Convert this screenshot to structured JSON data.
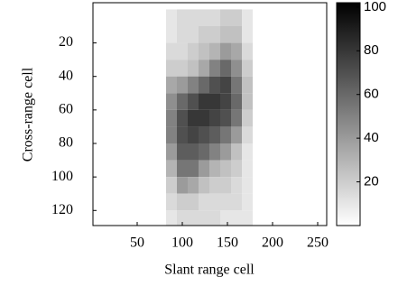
{
  "chart_data": {
    "type": "heatmap",
    "xlabel": "Slant range cell",
    "ylabel": "Cross-range cell",
    "x": [
      88,
      100,
      112,
      124,
      136,
      148,
      160,
      172
    ],
    "y": [
      5,
      15,
      25,
      35,
      45,
      55,
      65,
      75,
      85,
      95,
      105,
      115,
      125
    ],
    "values": [
      [
        10,
        15,
        15,
        15,
        15,
        20,
        20,
        10
      ],
      [
        10,
        15,
        15,
        20,
        20,
        25,
        25,
        10
      ],
      [
        15,
        15,
        20,
        25,
        30,
        40,
        35,
        15
      ],
      [
        20,
        20,
        25,
        35,
        50,
        60,
        45,
        20
      ],
      [
        35,
        40,
        50,
        60,
        70,
        75,
        55,
        25
      ],
      [
        45,
        60,
        70,
        80,
        80,
        75,
        60,
        25
      ],
      [
        50,
        70,
        80,
        80,
        75,
        70,
        55,
        20
      ],
      [
        50,
        70,
        75,
        70,
        65,
        55,
        40,
        15
      ],
      [
        40,
        65,
        65,
        60,
        50,
        40,
        25,
        10
      ],
      [
        30,
        55,
        55,
        40,
        30,
        25,
        20,
        10
      ],
      [
        20,
        40,
        35,
        25,
        20,
        20,
        15,
        10
      ],
      [
        15,
        20,
        20,
        15,
        15,
        15,
        15,
        10
      ],
      [
        10,
        15,
        15,
        15,
        15,
        10,
        10,
        10
      ]
    ],
    "cell_width": 12,
    "cell_height": 10,
    "xlim": [
      1,
      260
    ],
    "ylim": [
      -4,
      129
    ],
    "y_reversed": true,
    "xticks": [
      50,
      100,
      150,
      200,
      250
    ],
    "yticks": [
      20,
      40,
      60,
      80,
      100,
      120
    ],
    "clim": [
      0,
      102
    ],
    "cticks": [
      20,
      40,
      60,
      80,
      100
    ],
    "colormap": [
      "#ffffff",
      "#000000"
    ]
  }
}
